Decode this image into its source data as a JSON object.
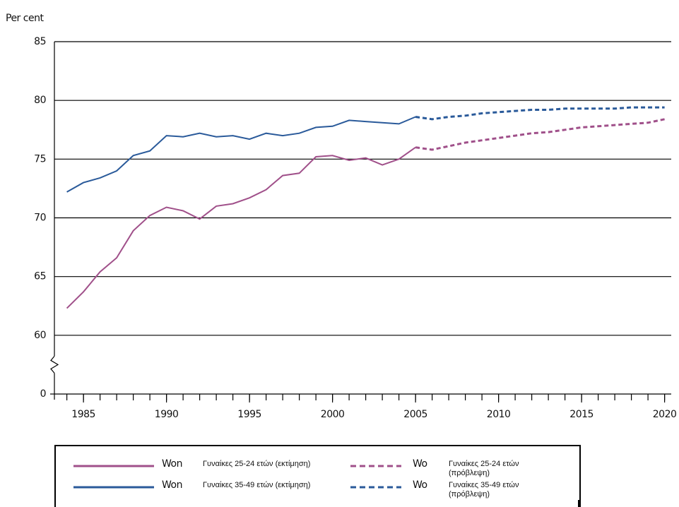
{
  "chart_data": {
    "type": "line",
    "y_label": "Per cent",
    "x": [
      1984,
      1985,
      1986,
      1987,
      1988,
      1989,
      1990,
      1991,
      1992,
      1993,
      1994,
      1995,
      1996,
      1997,
      1998,
      1999,
      2000,
      2001,
      2002,
      2003,
      2004,
      2005,
      2006,
      2007,
      2008,
      2009,
      2010,
      2011,
      2012,
      2013,
      2014,
      2015,
      2016,
      2017,
      2018,
      2019,
      2020
    ],
    "xlim": [
      1983.25,
      2020.4
    ],
    "xticks": [
      1985,
      1990,
      1995,
      2000,
      2005,
      2010,
      2015,
      2020
    ],
    "ylim": [
      0,
      85
    ],
    "yticks": [
      0,
      60,
      65,
      70,
      75,
      80,
      85
    ],
    "axis_break": true,
    "grid": true,
    "series": [
      {
        "name": "Γυναίκες 25-24 ετών (εκτίμηση)",
        "legend_stub": "Won",
        "color": "#a0508a",
        "dashed": false,
        "values": [
          62.3,
          63.7,
          65.4,
          66.6,
          68.9,
          70.2,
          70.9,
          70.6,
          69.9,
          71.0,
          71.2,
          71.7,
          72.4,
          73.6,
          73.8,
          75.2,
          75.3,
          74.9,
          75.1,
          74.5,
          75.0,
          76.0,
          null,
          null,
          null,
          null,
          null,
          null,
          null,
          null,
          null,
          null,
          null,
          null,
          null,
          null,
          null
        ]
      },
      {
        "name": "Γυναίκες 35-49 ετών (εκτίμηση)",
        "legend_stub": "Won",
        "color": "#2a5a9a",
        "dashed": false,
        "values": [
          72.2,
          73.0,
          73.4,
          74.0,
          75.3,
          75.7,
          77.0,
          76.9,
          77.2,
          76.9,
          77.0,
          76.7,
          77.2,
          77.0,
          77.2,
          77.7,
          77.8,
          78.3,
          78.2,
          78.1,
          78.0,
          78.6,
          null,
          null,
          null,
          null,
          null,
          null,
          null,
          null,
          null,
          null,
          null,
          null,
          null,
          null,
          null
        ]
      },
      {
        "name": "Γυναίκες 25-24 ετών (πρόβλεψη)",
        "legend_stub": "Wo",
        "color": "#a0508a",
        "dashed": true,
        "values": [
          null,
          null,
          null,
          null,
          null,
          null,
          null,
          null,
          null,
          null,
          null,
          null,
          null,
          null,
          null,
          null,
          null,
          null,
          null,
          null,
          null,
          76.0,
          75.8,
          76.1,
          76.4,
          76.6,
          76.8,
          77.0,
          77.2,
          77.3,
          77.5,
          77.7,
          77.8,
          77.9,
          78.0,
          78.1,
          78.4
        ]
      },
      {
        "name": "Γυναίκες 35-49 ετών (πρόβλεψη)",
        "legend_stub": "Wo",
        "color": "#2a5a9a",
        "dashed": true,
        "values": [
          null,
          null,
          null,
          null,
          null,
          null,
          null,
          null,
          null,
          null,
          null,
          null,
          null,
          null,
          null,
          null,
          null,
          null,
          null,
          null,
          null,
          78.6,
          78.4,
          78.6,
          78.7,
          78.9,
          79.0,
          79.1,
          79.2,
          79.2,
          79.3,
          79.3,
          79.3,
          79.3,
          79.4,
          79.4,
          79.4
        ]
      }
    ]
  }
}
